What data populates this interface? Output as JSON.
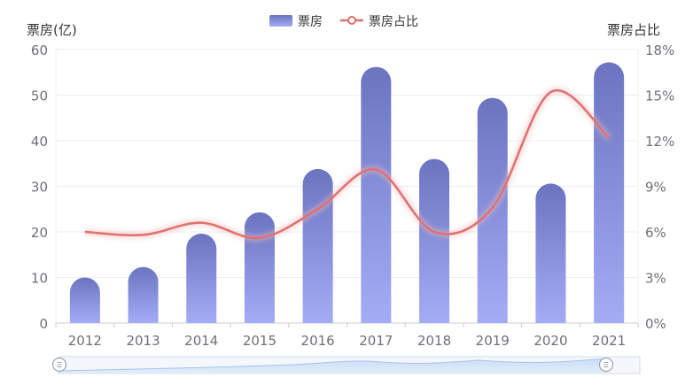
{
  "chart_data": {
    "type": "bar",
    "categories": [
      "2012",
      "2013",
      "2014",
      "2015",
      "2016",
      "2017",
      "2018",
      "2019",
      "2020",
      "2021"
    ],
    "series": [
      {
        "name": "票房",
        "type": "bar",
        "axis": "left",
        "values": [
          10,
          12.3,
          19.6,
          24.3,
          33.8,
          56.2,
          36,
          49.4,
          30.6,
          57.2
        ]
      },
      {
        "name": "票房占比",
        "type": "line",
        "axis": "right",
        "unit": "%",
        "values": [
          6.0,
          5.8,
          6.6,
          5.6,
          7.5,
          10.1,
          6.0,
          7.6,
          15.2,
          12.2
        ]
      }
    ],
    "ylabel_left": "票房(亿)",
    "ylabel_right": "票房占比",
    "ylim_left": [
      0,
      60
    ],
    "yticks_left": [
      0,
      10,
      20,
      30,
      40,
      50,
      60
    ],
    "ylim_right": [
      0,
      18
    ],
    "yticks_right": [
      "0%",
      "3%",
      "6%",
      "9%",
      "12%",
      "15%",
      "18%"
    ],
    "grid": true,
    "legend_position": "top-center",
    "colors": {
      "bar_top": "#6b74c0",
      "bar_bottom": "#a3acf5",
      "line": "#e07070",
      "grid": "#eeeeee",
      "tick_text": "#6e7079"
    },
    "datazoom": {
      "start_fraction": 0.0,
      "end_fraction": 1.0
    }
  }
}
